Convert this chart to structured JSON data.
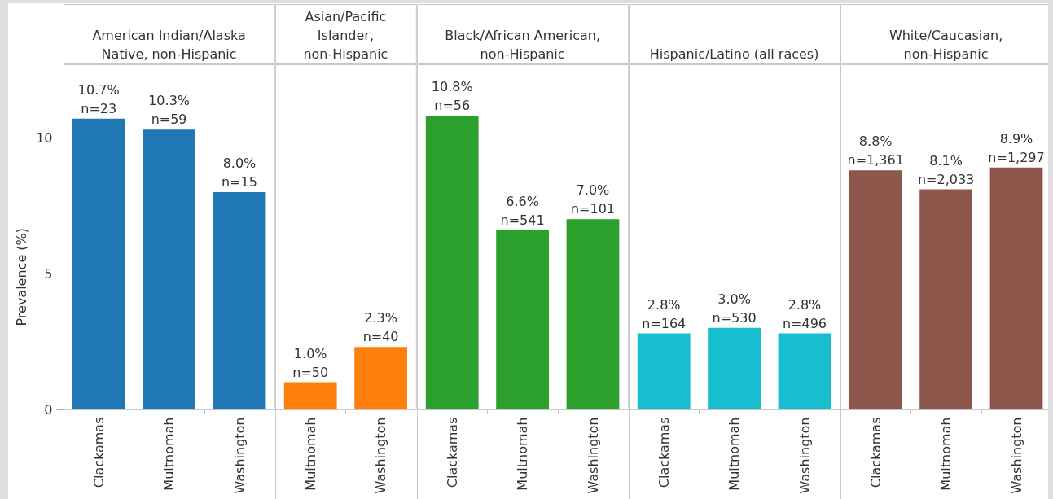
{
  "chart_data": [
    {
      "type": "bar",
      "title": "American Indian/Alaska Native, non-Hispanic",
      "ylabel": "Prevalence (%)",
      "categories": [
        "Clackamas",
        "Multnomah",
        "Washington"
      ],
      "values": [
        10.7,
        10.3,
        8.0
      ],
      "color": "#1f77b4",
      "value_labels": [
        "10.7%\nn=23",
        "10.3%\nn=59",
        "8.0%\nn=15"
      ],
      "ylim": [
        0,
        12.7
      ],
      "yticks": [
        0,
        5,
        10
      ]
    },
    {
      "type": "bar",
      "title": "Asian/Pacific Islander, non-Hispanic",
      "categories": [
        "Multnomah",
        "Washington"
      ],
      "values": [
        1.0,
        2.3
      ],
      "color": "#ff7f0e",
      "value_labels": [
        "1.0%\nn=50",
        "2.3%\nn=40"
      ],
      "ylim": [
        0,
        12.7
      ],
      "tick_labels": "x"
    },
    {
      "type": "bar",
      "title": "Black/African American, non-Hispanic",
      "categories": [
        "Clackamas",
        "Multnomah",
        "Washington"
      ],
      "values": [
        10.8,
        6.6,
        7.0
      ],
      "color": "#2ca02c",
      "value_labels": [
        "10.8%\nn=56",
        "6.6%\nn=541",
        "7.0%\nn=101"
      ],
      "ylim": [
        0,
        12.7
      ],
      "tick_labels": "x"
    },
    {
      "type": "bar",
      "title": "Hispanic/Latino (all races)",
      "categories": [
        "Clackamas",
        "Multnomah",
        "Washington"
      ],
      "values": [
        2.8,
        3.0,
        2.8
      ],
      "color": "#17becf",
      "value_labels": [
        "2.8%\nn=164",
        "3.0%\nn=530",
        "2.8%\nn=496"
      ],
      "ylim": [
        0,
        12.7
      ],
      "tick_labels": "x"
    },
    {
      "type": "bar",
      "title": "White/Caucasian, non-Hispanic",
      "categories": [
        "Clackamas",
        "Multnomah",
        "Washington"
      ],
      "values": [
        8.8,
        8.1,
        8.9
      ],
      "color": "#8c564b",
      "value_labels": [
        "8.8%\nn=1,361",
        "8.1%\nn=2,033",
        "8.9%\nn=1,297"
      ],
      "ylim": [
        0,
        12.7
      ],
      "tick_labels": "x"
    }
  ]
}
